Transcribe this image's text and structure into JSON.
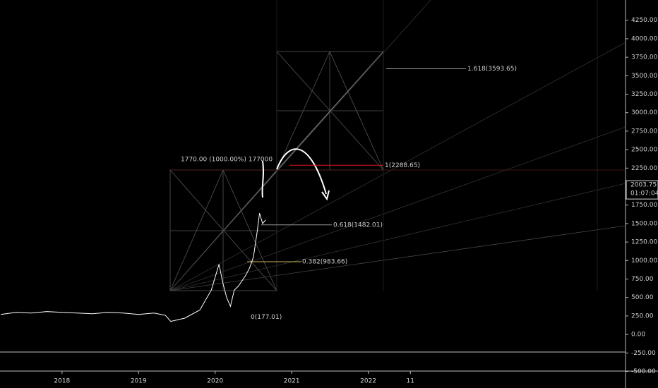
{
  "chart_data": {
    "type": "line",
    "x": [
      2017.2,
      2017.4,
      2017.6,
      2017.8,
      2018.0,
      2018.2,
      2018.4,
      2018.6,
      2018.8,
      2019.0,
      2019.2,
      2019.35,
      2019.42,
      2019.6,
      2019.8,
      2019.95,
      2020.05,
      2020.1,
      2020.15,
      2020.2,
      2020.25,
      2020.3,
      2020.4,
      2020.45,
      2020.5,
      2020.55,
      2020.58,
      2020.62,
      2020.66
    ],
    "series": [
      {
        "color": "#ffffff",
        "values": [
          270,
          300,
          290,
          310,
          300,
          290,
          280,
          300,
          290,
          270,
          290,
          260,
          177,
          220,
          330,
          600,
          950,
          700,
          500,
          380,
          600,
          650,
          800,
          900,
          1050,
          1400,
          1640,
          1500,
          1550
        ]
      }
    ],
    "xlim": [
      2017.19,
      2025.36
    ],
    "xticks": [
      2018,
      2019,
      2020,
      2021,
      2022,
      {
        "value": 2022.55,
        "label": "11"
      }
    ],
    "ylim": [
      -724,
      4524
    ],
    "yticks": [
      {
        "value": 4250,
        "label": "4250.00"
      },
      {
        "value": 4000,
        "label": "4000.00"
      },
      {
        "value": 3750,
        "label": "3750.00"
      },
      {
        "value": 3500,
        "label": "3500.00"
      },
      {
        "value": 3250,
        "label": "3250.00"
      },
      {
        "value": 3000,
        "label": "3000.00"
      },
      {
        "value": 2750,
        "label": "2750.00"
      },
      {
        "value": 2500,
        "label": "2500.00"
      },
      {
        "value": 2250,
        "label": "2250.00"
      },
      {
        "value": 1750,
        "label": "1750.00"
      },
      {
        "value": 1500,
        "label": "1500.00"
      },
      {
        "value": 1250,
        "label": "1250.00"
      },
      {
        "value": 1000,
        "label": "1000.00"
      },
      {
        "value": 750,
        "label": "750.00"
      },
      {
        "value": 500,
        "label": "500.00"
      },
      {
        "value": 250,
        "label": "250.00"
      },
      {
        "value": 0,
        "label": "0.00"
      },
      {
        "value": -250,
        "label": "-250.00"
      },
      {
        "value": -500,
        "label": "-500.00"
      }
    ],
    "fib_levels": [
      {
        "label": "0(177.01)",
        "value": 177.01,
        "color": "#cccccc"
      },
      {
        "label": "0.382(983.66)",
        "value": 983.66,
        "color": "#c9b458"
      },
      {
        "label": "0.618(1482.01)",
        "value": 1482.01,
        "color": "#9a9a9a"
      },
      {
        "label": "1(2288.65)",
        "value": 2288.65,
        "color": "#e0141e"
      },
      {
        "label": "1.618(3593.65)",
        "value": 3593.65,
        "color": "#9a9a9a"
      }
    ],
    "last_price": 2003.75,
    "countdown": "01:07:04",
    "annotation": "1770.00 (1000.00%) 177000"
  }
}
